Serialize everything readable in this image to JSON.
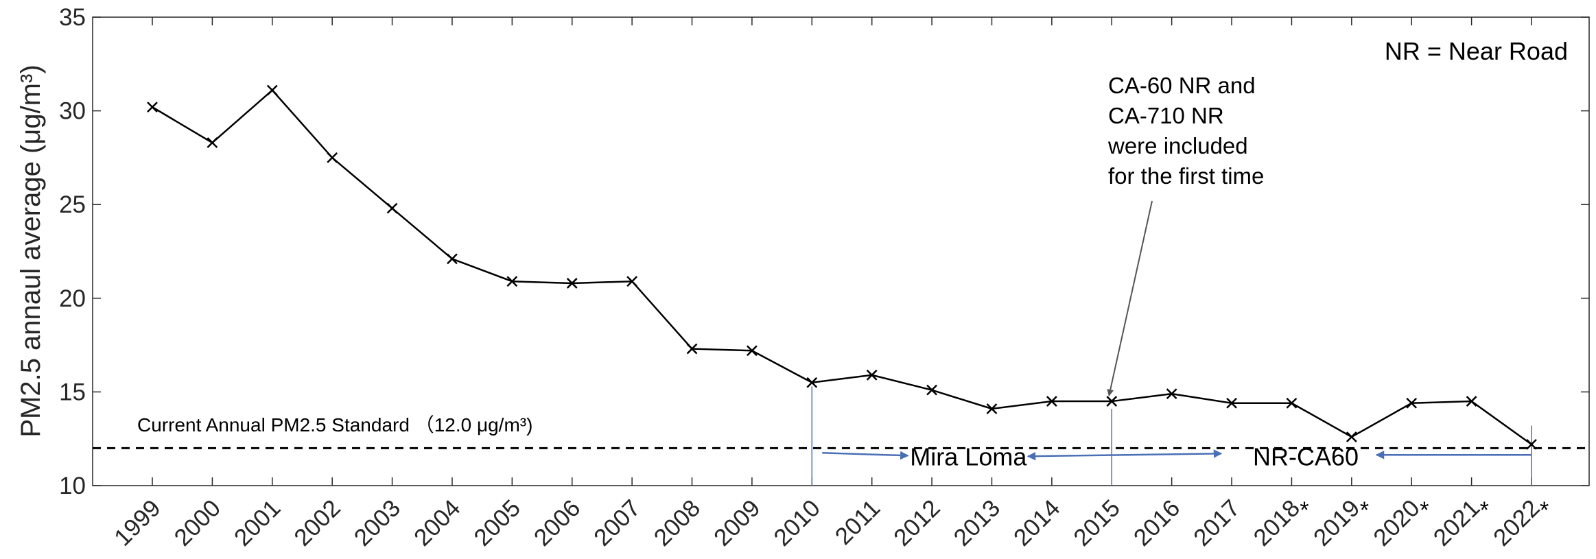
{
  "chart_data": {
    "type": "line",
    "title": "",
    "xlabel": "",
    "ylabel": "PM2.5 annaul average (μg/m³)",
    "ylim": [
      10,
      35
    ],
    "yticks": [
      10,
      15,
      20,
      25,
      30,
      35
    ],
    "grid": false,
    "categories": [
      "1999",
      "2000",
      "2001",
      "2002",
      "2003",
      "2004",
      "2005",
      "2006",
      "2007",
      "2008",
      "2009",
      "2010",
      "2011",
      "2012",
      "2013",
      "2014",
      "2015",
      "2016",
      "2017",
      "2018",
      "2019",
      "2020",
      "2021",
      "2022"
    ],
    "asterisk_categories": [
      "2018",
      "2019",
      "2020",
      "2021",
      "2022"
    ],
    "asterisk_symbol": "*",
    "series": [
      {
        "values": [
          30.2,
          28.3,
          31.1,
          27.5,
          24.8,
          22.1,
          20.9,
          20.8,
          20.9,
          17.3,
          17.2,
          15.5,
          15.9,
          15.1,
          14.1,
          14.5,
          14.5,
          14.9,
          14.4,
          14.4,
          12.6,
          14.4,
          14.5,
          12.2
        ],
        "color": "#000000",
        "marker": "x"
      }
    ],
    "reference_line": {
      "value": 12.0,
      "label": "Current Annual PM2.5 Standard （12.0 μg/m³)",
      "style": "dashed",
      "color": "#000000"
    },
    "annotations": {
      "legend_note": "NR = Near Road",
      "first_time_note": [
        "CA-60 NR and",
        "CA-710 NR",
        "were included",
        "for the first time"
      ],
      "first_time_year": "2015",
      "site_labels": [
        {
          "text": "Mira Loma",
          "from_year": "2010",
          "to_year": "2015"
        },
        {
          "text": "NR-CA60",
          "from_year": "2015",
          "to_year": "2022"
        }
      ],
      "arrow_color": "#4a6fb5",
      "pointer_color": "#555555"
    }
  }
}
